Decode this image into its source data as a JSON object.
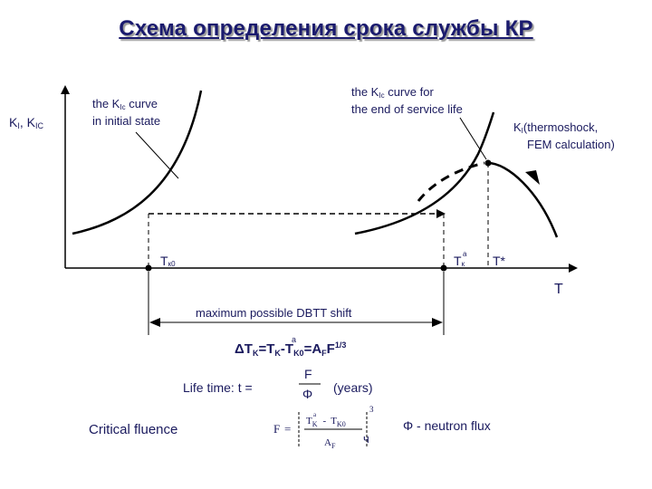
{
  "title": "Схема определения срока службы КР",
  "axes": {
    "y_label": "K",
    "y_label_sub": "I",
    "y_label_sep": ",  K",
    "y_label_sub2": "IC",
    "x_label": "T"
  },
  "annotations": {
    "initial_curve_line1_pre": "the K",
    "initial_curve_line1_sub": "Ic",
    "initial_curve_line1_post": " curve",
    "initial_curve_line2": "in initial state",
    "end_curve_line1_pre": "the K",
    "end_curve_line1_sub": "Ic",
    "end_curve_line1_post": "  curve for",
    "end_curve_line2": "the end of service life",
    "thermoshock_line1_pre": "K",
    "thermoshock_line1_sub": "I",
    "thermoshock_line1_post": "(thermoshock,",
    "thermoshock_line2": "FEM calculation)",
    "tk0_main": "T",
    "tk0_sub": "к0",
    "tka_main": "T",
    "tka_sub": "к",
    "tka_sup": "a",
    "tstar": "T*",
    "shift_label": "maximum possible DBTT shift"
  },
  "formulas": {
    "delta_formula": "ΔT",
    "delta_k": "K",
    "delta_eq1": "=T",
    "delta_k2": "K",
    "delta_a": "a",
    "delta_minus": "-T",
    "delta_k0": "K0",
    "delta_eq2": "=A",
    "delta_F": "F",
    "delta_F2": "F",
    "delta_exp": "1/3",
    "life_label": "Life time: t =",
    "life_num": "F",
    "life_den": "Φ",
    "life_units": "(years)",
    "critical_label": "Critical fluence",
    "crit_F": "F",
    "crit_eq": "=",
    "crit_num_T": "T",
    "crit_num_K": "K",
    "crit_num_a": "a",
    "crit_num_minus": "-",
    "crit_num_T2": "T",
    "crit_num_K0": "K0",
    "crit_den_A": "A",
    "crit_den_F": "F",
    "crit_exp": "3",
    "crit_bracket_mark": "ч",
    "flux_note": "Φ - neutron flux"
  }
}
